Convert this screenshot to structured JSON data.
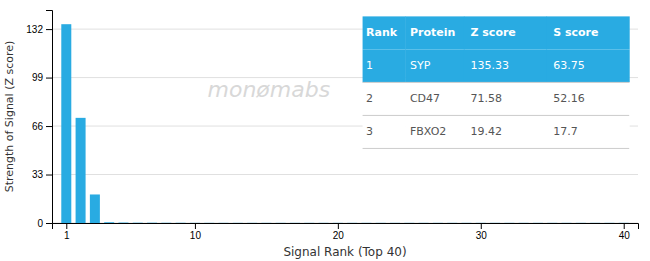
{
  "chart_data": {
    "type": "bar",
    "x": [
      1,
      2,
      3,
      4,
      5,
      6,
      7,
      8,
      9,
      10,
      11,
      12,
      13,
      14,
      15,
      16,
      17,
      18,
      19,
      20,
      21,
      22,
      23,
      24,
      25,
      26,
      27,
      28,
      29,
      30,
      31,
      32,
      33,
      34,
      35,
      36,
      37,
      38,
      39,
      40
    ],
    "values": [
      135.33,
      71.58,
      19.42,
      0.5,
      0.3,
      0.2,
      0.2,
      0.15,
      0.15,
      0.1,
      0.1,
      0.1,
      0.1,
      0.1,
      0.1,
      0.1,
      0.1,
      0.1,
      0.1,
      0.1,
      0.1,
      0.1,
      0.1,
      0.1,
      0.1,
      0.1,
      0.1,
      0.1,
      0.1,
      0.1,
      0.1,
      0.1,
      0.1,
      0.1,
      0.1,
      0.1,
      0.1,
      0.1,
      0.1,
      0.1
    ],
    "color": "#29abe2",
    "xlim": [
      0,
      41
    ],
    "xticks": [
      1,
      10,
      20,
      30,
      40
    ],
    "ylim": [
      0,
      145
    ],
    "yticks": [
      0,
      33,
      66,
      99,
      132
    ],
    "x_label": "Signal Rank (Top 40)",
    "y_label": "Strength of Signal (Z score)",
    "grid": true,
    "annotations": [
      "monømabs"
    ],
    "table": {
      "headers": [
        "Rank",
        "Protein",
        "Z score",
        "S score"
      ],
      "rows": [
        [
          "1",
          "SYP",
          "135.33",
          "63.75"
        ],
        [
          "2",
          "CD47",
          "71.58",
          "52.16"
        ],
        [
          "3",
          "FBXO2",
          "19.42",
          "17.7"
        ]
      ]
    }
  }
}
